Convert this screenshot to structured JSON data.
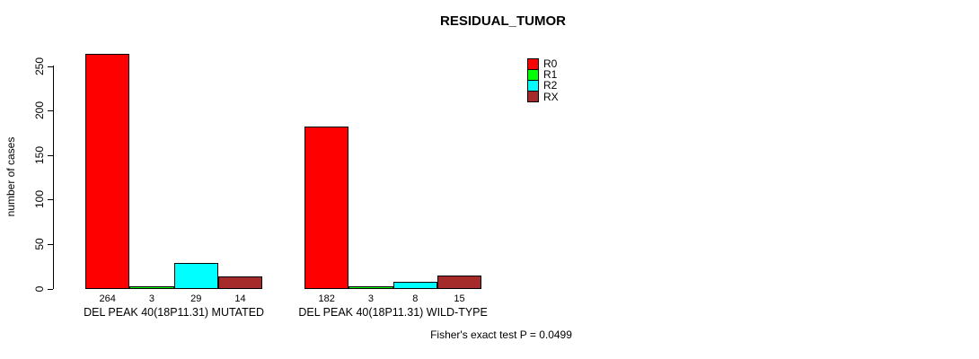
{
  "title": "RESIDUAL_TUMOR",
  "footer": "Fisher's exact test P = 0.0499",
  "chart_data": {
    "type": "bar",
    "title": "RESIDUAL_TUMOR",
    "xlabel": "",
    "ylabel": "number of cases",
    "ylim": [
      0,
      250
    ],
    "yticks": [
      0,
      50,
      100,
      150,
      200,
      250
    ],
    "grid": false,
    "legend_position": "top-right",
    "categories": [
      "DEL PEAK 40(18P11.31) MUTATED",
      "DEL PEAK 40(18P11.31) WILD-TYPE"
    ],
    "series": [
      {
        "name": "R0",
        "color": "#ff0000",
        "values": [
          264,
          182
        ]
      },
      {
        "name": "R1",
        "color": "#00ff00",
        "values": [
          3,
          3
        ]
      },
      {
        "name": "R2",
        "color": "#00ffff",
        "values": [
          29,
          8
        ]
      },
      {
        "name": "RX",
        "color": "#a52a2a",
        "values": [
          14,
          15
        ]
      }
    ],
    "bar_value_labels": true,
    "annotation": "Fisher's exact test P = 0.0499"
  }
}
